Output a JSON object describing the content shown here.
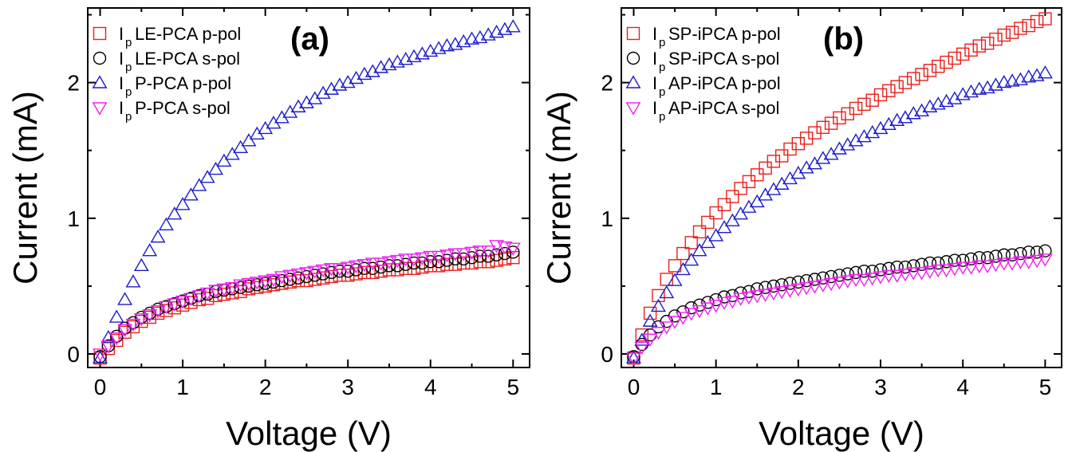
{
  "chart_data": [
    {
      "type": "scatter",
      "panel_label": "(a)",
      "xlabel": "Voltage (V)",
      "ylabel": "Current (mA)",
      "xlim": [
        -0.15,
        5.2
      ],
      "ylim": [
        -0.1,
        2.55
      ],
      "xticks": [
        "0",
        "1",
        "2",
        "3",
        "4",
        "5"
      ],
      "yticks": [
        "0",
        "1",
        "2"
      ],
      "xtick_values": [
        0,
        1,
        2,
        3,
        4,
        5
      ],
      "ytick_values": [
        0,
        1,
        2
      ],
      "grid": false,
      "legend_position": "top-left",
      "series": [
        {
          "legend_main": "I",
          "legend_sub": "p",
          "name": "LE-PCA p-pol",
          "marker": "square",
          "color": "#e8201c",
          "x": [
            0,
            0.1,
            0.2,
            0.3,
            0.4,
            0.5,
            0.6,
            0.7,
            0.8,
            0.9,
            1.0,
            1.1,
            1.2,
            1.3,
            1.4,
            1.5,
            1.6,
            1.7,
            1.8,
            1.9,
            2.0,
            2.1,
            2.2,
            2.3,
            2.4,
            2.5,
            2.6,
            2.7,
            2.8,
            2.9,
            3.0,
            3.1,
            3.2,
            3.3,
            3.4,
            3.5,
            3.6,
            3.7,
            3.8,
            3.9,
            4.0,
            4.1,
            4.2,
            4.3,
            4.4,
            4.5,
            4.6,
            4.7,
            4.8,
            4.9,
            5.0
          ],
          "y": [
            -0.03,
            0.04,
            0.1,
            0.16,
            0.2,
            0.24,
            0.27,
            0.3,
            0.32,
            0.34,
            0.36,
            0.38,
            0.4,
            0.41,
            0.43,
            0.44,
            0.45,
            0.46,
            0.48,
            0.49,
            0.5,
            0.51,
            0.52,
            0.53,
            0.54,
            0.54,
            0.55,
            0.56,
            0.57,
            0.58,
            0.58,
            0.59,
            0.6,
            0.6,
            0.61,
            0.62,
            0.62,
            0.63,
            0.63,
            0.64,
            0.65,
            0.65,
            0.66,
            0.66,
            0.67,
            0.67,
            0.68,
            0.68,
            0.69,
            0.7,
            0.71
          ]
        },
        {
          "legend_main": "I",
          "legend_sub": "p",
          "name": "LE-PCA s-pol",
          "marker": "circle",
          "color": "#000000",
          "x": [
            0,
            0.1,
            0.2,
            0.3,
            0.4,
            0.5,
            0.6,
            0.7,
            0.8,
            0.9,
            1.0,
            1.1,
            1.2,
            1.3,
            1.4,
            1.5,
            1.6,
            1.7,
            1.8,
            1.9,
            2.0,
            2.1,
            2.2,
            2.3,
            2.4,
            2.5,
            2.6,
            2.7,
            2.8,
            2.9,
            3.0,
            3.1,
            3.2,
            3.3,
            3.4,
            3.5,
            3.6,
            3.7,
            3.8,
            3.9,
            4.0,
            4.1,
            4.2,
            4.3,
            4.4,
            4.5,
            4.6,
            4.7,
            4.8,
            4.9,
            5.0
          ],
          "y": [
            -0.02,
            0.06,
            0.13,
            0.19,
            0.23,
            0.27,
            0.3,
            0.33,
            0.35,
            0.37,
            0.39,
            0.41,
            0.43,
            0.44,
            0.46,
            0.47,
            0.48,
            0.49,
            0.5,
            0.51,
            0.52,
            0.53,
            0.54,
            0.55,
            0.56,
            0.57,
            0.58,
            0.59,
            0.6,
            0.61,
            0.61,
            0.62,
            0.63,
            0.63,
            0.64,
            0.65,
            0.65,
            0.66,
            0.67,
            0.67,
            0.68,
            0.68,
            0.69,
            0.7,
            0.7,
            0.71,
            0.72,
            0.72,
            0.73,
            0.74,
            0.75
          ]
        },
        {
          "legend_main": "I",
          "legend_sub": "p",
          "name": "P-PCA p-pol",
          "marker": "triangle-up",
          "color": "#1c1ccc",
          "x": [
            0,
            0.1,
            0.2,
            0.3,
            0.4,
            0.5,
            0.6,
            0.7,
            0.8,
            0.9,
            1.0,
            1.1,
            1.2,
            1.3,
            1.4,
            1.5,
            1.6,
            1.7,
            1.8,
            1.9,
            2.0,
            2.1,
            2.2,
            2.3,
            2.4,
            2.5,
            2.6,
            2.7,
            2.8,
            2.9,
            3.0,
            3.1,
            3.2,
            3.3,
            3.4,
            3.5,
            3.6,
            3.7,
            3.8,
            3.9,
            4.0,
            4.1,
            4.2,
            4.3,
            4.4,
            4.5,
            4.6,
            4.7,
            4.8,
            4.9,
            5.0
          ],
          "y": [
            -0.03,
            0.12,
            0.27,
            0.4,
            0.53,
            0.65,
            0.76,
            0.86,
            0.95,
            1.03,
            1.1,
            1.17,
            1.24,
            1.3,
            1.36,
            1.42,
            1.47,
            1.52,
            1.57,
            1.62,
            1.66,
            1.7,
            1.74,
            1.78,
            1.82,
            1.85,
            1.88,
            1.92,
            1.95,
            1.98,
            2.0,
            2.03,
            2.06,
            2.08,
            2.11,
            2.13,
            2.15,
            2.17,
            2.19,
            2.21,
            2.23,
            2.25,
            2.27,
            2.28,
            2.3,
            2.32,
            2.33,
            2.35,
            2.37,
            2.39,
            2.41
          ]
        },
        {
          "legend_main": "I",
          "legend_sub": "p",
          "name": "P-PCA s-pol",
          "marker": "triangle-down",
          "color": "#ee22ee",
          "x": [
            0,
            0.1,
            0.2,
            0.3,
            0.4,
            0.5,
            0.6,
            0.7,
            0.8,
            0.9,
            1.0,
            1.1,
            1.2,
            1.3,
            1.4,
            1.5,
            1.6,
            1.7,
            1.8,
            1.9,
            2.0,
            2.1,
            2.2,
            2.3,
            2.4,
            2.5,
            2.6,
            2.7,
            2.8,
            2.9,
            3.0,
            3.1,
            3.2,
            3.3,
            3.4,
            3.5,
            3.6,
            3.7,
            3.8,
            3.9,
            4.0,
            4.1,
            4.2,
            4.3,
            4.4,
            4.5,
            4.6,
            4.7,
            4.8,
            4.9,
            5.0
          ],
          "y": [
            0.0,
            0.06,
            0.12,
            0.18,
            0.22,
            0.26,
            0.29,
            0.32,
            0.35,
            0.37,
            0.39,
            0.41,
            0.43,
            0.45,
            0.47,
            0.48,
            0.49,
            0.51,
            0.52,
            0.53,
            0.54,
            0.55,
            0.57,
            0.58,
            0.59,
            0.6,
            0.61,
            0.62,
            0.63,
            0.63,
            0.64,
            0.65,
            0.66,
            0.67,
            0.67,
            0.68,
            0.69,
            0.7,
            0.7,
            0.71,
            0.72,
            0.72,
            0.73,
            0.74,
            0.74,
            0.75,
            0.76,
            0.76,
            0.8,
            0.79,
            0.78
          ]
        }
      ]
    },
    {
      "type": "scatter",
      "panel_label": "(b)",
      "xlabel": "Voltage (V)",
      "ylabel": "Current (mA)",
      "xlim": [
        -0.15,
        5.2
      ],
      "ylim": [
        -0.1,
        2.55
      ],
      "xticks": [
        "0",
        "1",
        "2",
        "3",
        "4",
        "5"
      ],
      "yticks": [
        "0",
        "1",
        "2"
      ],
      "xtick_values": [
        0,
        1,
        2,
        3,
        4,
        5
      ],
      "ytick_values": [
        0,
        1,
        2
      ],
      "grid": false,
      "legend_position": "top-left",
      "series": [
        {
          "legend_main": "I",
          "legend_sub": "p",
          "name": "SP-iPCA p-pol",
          "marker": "square",
          "color": "#e8201c",
          "x": [
            0,
            0.1,
            0.2,
            0.3,
            0.4,
            0.5,
            0.6,
            0.7,
            0.8,
            0.9,
            1.0,
            1.1,
            1.2,
            1.3,
            1.4,
            1.5,
            1.6,
            1.7,
            1.8,
            1.9,
            2.0,
            2.1,
            2.2,
            2.3,
            2.4,
            2.5,
            2.6,
            2.7,
            2.8,
            2.9,
            3.0,
            3.1,
            3.2,
            3.3,
            3.4,
            3.5,
            3.6,
            3.7,
            3.8,
            3.9,
            4.0,
            4.1,
            4.2,
            4.3,
            4.4,
            4.5,
            4.6,
            4.7,
            4.8,
            4.9,
            5.0
          ],
          "y": [
            -0.03,
            0.14,
            0.3,
            0.43,
            0.55,
            0.65,
            0.74,
            0.82,
            0.9,
            0.97,
            1.04,
            1.1,
            1.16,
            1.22,
            1.27,
            1.32,
            1.37,
            1.42,
            1.46,
            1.51,
            1.55,
            1.59,
            1.63,
            1.67,
            1.7,
            1.74,
            1.77,
            1.81,
            1.84,
            1.87,
            1.91,
            1.94,
            1.97,
            2.0,
            2.03,
            2.06,
            2.09,
            2.12,
            2.15,
            2.18,
            2.21,
            2.24,
            2.27,
            2.29,
            2.32,
            2.35,
            2.37,
            2.4,
            2.42,
            2.45,
            2.47
          ]
        },
        {
          "legend_main": "I",
          "legend_sub": "p",
          "name": "SP-iPCA s-pol",
          "marker": "circle",
          "color": "#000000",
          "x": [
            0,
            0.1,
            0.2,
            0.3,
            0.4,
            0.5,
            0.6,
            0.7,
            0.8,
            0.9,
            1.0,
            1.1,
            1.2,
            1.3,
            1.4,
            1.5,
            1.6,
            1.7,
            1.8,
            1.9,
            2.0,
            2.1,
            2.2,
            2.3,
            2.4,
            2.5,
            2.6,
            2.7,
            2.8,
            2.9,
            3.0,
            3.1,
            3.2,
            3.3,
            3.4,
            3.5,
            3.6,
            3.7,
            3.8,
            3.9,
            4.0,
            4.1,
            4.2,
            4.3,
            4.4,
            4.5,
            4.6,
            4.7,
            4.8,
            4.9,
            5.0
          ],
          "y": [
            -0.02,
            0.07,
            0.14,
            0.2,
            0.24,
            0.28,
            0.31,
            0.34,
            0.36,
            0.38,
            0.4,
            0.42,
            0.43,
            0.45,
            0.46,
            0.48,
            0.49,
            0.5,
            0.51,
            0.52,
            0.53,
            0.54,
            0.55,
            0.56,
            0.57,
            0.58,
            0.59,
            0.6,
            0.61,
            0.61,
            0.62,
            0.63,
            0.64,
            0.64,
            0.65,
            0.66,
            0.67,
            0.67,
            0.68,
            0.69,
            0.69,
            0.7,
            0.71,
            0.71,
            0.72,
            0.73,
            0.73,
            0.74,
            0.75,
            0.75,
            0.76
          ]
        },
        {
          "legend_main": "I",
          "legend_sub": "p",
          "name": "AP-iPCA p-pol",
          "marker": "triangle-up",
          "color": "#1c1ccc",
          "x": [
            0,
            0.1,
            0.2,
            0.3,
            0.4,
            0.5,
            0.6,
            0.7,
            0.8,
            0.9,
            1.0,
            1.1,
            1.2,
            1.3,
            1.4,
            1.5,
            1.6,
            1.7,
            1.8,
            1.9,
            2.0,
            2.1,
            2.2,
            2.3,
            2.4,
            2.5,
            2.6,
            2.7,
            2.8,
            2.9,
            3.0,
            3.1,
            3.2,
            3.3,
            3.4,
            3.5,
            3.6,
            3.7,
            3.8,
            3.9,
            4.0,
            4.1,
            4.2,
            4.3,
            4.4,
            4.5,
            4.6,
            4.7,
            4.8,
            4.9,
            5.0
          ],
          "y": [
            -0.03,
            0.1,
            0.24,
            0.35,
            0.45,
            0.54,
            0.62,
            0.69,
            0.76,
            0.82,
            0.87,
            0.93,
            0.98,
            1.03,
            1.08,
            1.12,
            1.17,
            1.21,
            1.25,
            1.29,
            1.33,
            1.37,
            1.4,
            1.44,
            1.47,
            1.51,
            1.54,
            1.57,
            1.6,
            1.63,
            1.66,
            1.69,
            1.72,
            1.74,
            1.77,
            1.79,
            1.82,
            1.84,
            1.86,
            1.88,
            1.91,
            1.93,
            1.95,
            1.96,
            1.98,
            2.0,
            2.01,
            2.02,
            2.04,
            2.05,
            2.07
          ]
        },
        {
          "legend_main": "I",
          "legend_sub": "p",
          "name": "AP-iPCA s-pol",
          "marker": "triangle-down",
          "color": "#ee22ee",
          "x": [
            0,
            0.1,
            0.2,
            0.3,
            0.4,
            0.5,
            0.6,
            0.7,
            0.8,
            0.9,
            1.0,
            1.1,
            1.2,
            1.3,
            1.4,
            1.5,
            1.6,
            1.7,
            1.8,
            1.9,
            2.0,
            2.1,
            2.2,
            2.3,
            2.4,
            2.5,
            2.6,
            2.7,
            2.8,
            2.9,
            3.0,
            3.1,
            3.2,
            3.3,
            3.4,
            3.5,
            3.6,
            3.7,
            3.8,
            3.9,
            4.0,
            4.1,
            4.2,
            4.3,
            4.4,
            4.5,
            4.6,
            4.7,
            4.8,
            4.9,
            5.0
          ],
          "y": [
            -0.03,
            0.05,
            0.11,
            0.16,
            0.2,
            0.24,
            0.27,
            0.3,
            0.32,
            0.34,
            0.36,
            0.38,
            0.39,
            0.41,
            0.42,
            0.43,
            0.44,
            0.45,
            0.46,
            0.47,
            0.48,
            0.49,
            0.5,
            0.51,
            0.52,
            0.53,
            0.54,
            0.55,
            0.55,
            0.56,
            0.57,
            0.58,
            0.58,
            0.59,
            0.6,
            0.6,
            0.61,
            0.62,
            0.62,
            0.63,
            0.64,
            0.64,
            0.65,
            0.65,
            0.66,
            0.67,
            0.67,
            0.68,
            0.68,
            0.69,
            0.7
          ]
        }
      ]
    }
  ]
}
